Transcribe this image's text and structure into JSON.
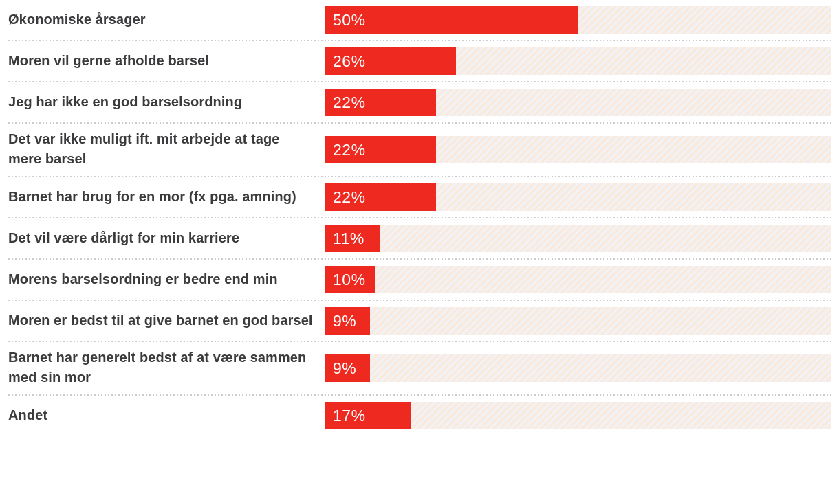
{
  "chart_data": {
    "type": "bar",
    "orientation": "horizontal",
    "categories": [
      "Økonomiske årsager",
      "Moren vil gerne afholde barsel",
      "Jeg har ikke en god barselsordning",
      "Det var ikke muligt ift. mit arbejde at tage mere barsel",
      "Barnet har brug for en mor (fx pga. amning)",
      "Det vil være dårligt for min karriere",
      "Morens barselsordning er bedre end min",
      "Moren er bedst til at give barnet en god barsel",
      "Barnet har generelt bedst af at være sammen med sin mor",
      "Andet"
    ],
    "values": [
      50,
      26,
      22,
      22,
      22,
      11,
      10,
      9,
      9,
      17
    ],
    "value_labels": [
      "50%",
      "26%",
      "22%",
      "22%",
      "22%",
      "11%",
      "10%",
      "9%",
      "9%",
      "17%"
    ],
    "xlim": [
      0,
      100
    ],
    "legend": "none",
    "grid": "off",
    "colors": {
      "bar": "#ee2a20",
      "bar_value_text": "#ffffff",
      "category_text": "#3b3b3d",
      "track_stripe_light": "#f1f2f6",
      "track_stripe_peach": "#fbe9dc",
      "divider_dots": "#cdcdcd",
      "background": "#ffffff"
    }
  }
}
